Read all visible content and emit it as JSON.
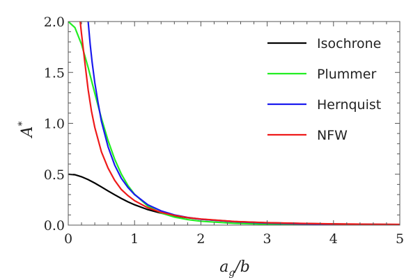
{
  "chart_data": {
    "type": "line",
    "xlabel": {
      "main": "a",
      "sub": "g",
      "rest": "/b"
    },
    "ylabel": {
      "main": "A",
      "sup": "*"
    },
    "xlim": [
      0,
      5
    ],
    "ylim": [
      0,
      2
    ],
    "xticks": [
      "0",
      "1",
      "2",
      "3",
      "4",
      "5"
    ],
    "yticks": [
      "0.0",
      "0.5",
      "1.0",
      "1.5",
      "2.0"
    ],
    "legend_placement": "top-right",
    "series": [
      {
        "name": "Isochrone",
        "color": "#000000",
        "x": [
          0,
          0.1,
          0.2,
          0.3,
          0.4,
          0.5,
          0.6,
          0.7,
          0.8,
          0.9,
          1.0,
          1.2,
          1.4,
          1.6,
          1.8,
          2.0,
          2.5,
          3.0,
          3.5,
          4.0,
          4.5,
          5.0
        ],
        "y": [
          0.5,
          0.495,
          0.475,
          0.447,
          0.413,
          0.375,
          0.336,
          0.298,
          0.262,
          0.229,
          0.2,
          0.152,
          0.117,
          0.091,
          0.072,
          0.058,
          0.035,
          0.023,
          0.016,
          0.011,
          0.008,
          0.006
        ]
      },
      {
        "name": "Plummer",
        "color": "#22ee22",
        "x": [
          0,
          0.1,
          0.2,
          0.3,
          0.4,
          0.5,
          0.6,
          0.7,
          0.8,
          0.9,
          1.0,
          1.2,
          1.4,
          1.6,
          1.8,
          2.0,
          2.5,
          3.0,
          3.5,
          4.0,
          4.5,
          5.0
        ],
        "y": [
          2.0,
          1.941,
          1.777,
          1.548,
          1.296,
          1.05,
          0.831,
          0.648,
          0.502,
          0.389,
          0.303,
          0.187,
          0.119,
          0.079,
          0.054,
          0.038,
          0.018,
          0.009,
          0.006,
          0.004,
          0.002,
          0.002
        ]
      },
      {
        "name": "Hernquist",
        "color": "#1a1aee",
        "x": [
          0.3,
          0.33,
          0.36,
          0.4,
          0.45,
          0.5,
          0.6,
          0.7,
          0.8,
          0.9,
          1.0,
          1.2,
          1.4,
          1.6,
          1.8,
          2.0,
          2.5,
          3.0,
          3.5,
          4.0,
          4.5,
          5.0
        ],
        "y": [
          2.0,
          1.78,
          1.6,
          1.4,
          1.2,
          1.02,
          0.77,
          0.59,
          0.46,
          0.37,
          0.3,
          0.2,
          0.14,
          0.1,
          0.075,
          0.058,
          0.033,
          0.02,
          0.013,
          0.009,
          0.007,
          0.005
        ]
      },
      {
        "name": "NFW",
        "color": "#ee1a1a",
        "x": [
          0.18,
          0.2,
          0.25,
          0.3,
          0.35,
          0.4,
          0.5,
          0.6,
          0.7,
          0.8,
          0.9,
          1.0,
          1.2,
          1.4,
          1.6,
          1.8,
          2.0,
          2.5,
          3.0,
          3.5,
          4.0,
          4.5,
          5.0
        ],
        "y": [
          2.0,
          1.88,
          1.6,
          1.33,
          1.12,
          0.96,
          0.72,
          0.56,
          0.44,
          0.35,
          0.29,
          0.24,
          0.17,
          0.125,
          0.095,
          0.074,
          0.06,
          0.036,
          0.024,
          0.017,
          0.012,
          0.009,
          0.007
        ]
      }
    ]
  }
}
